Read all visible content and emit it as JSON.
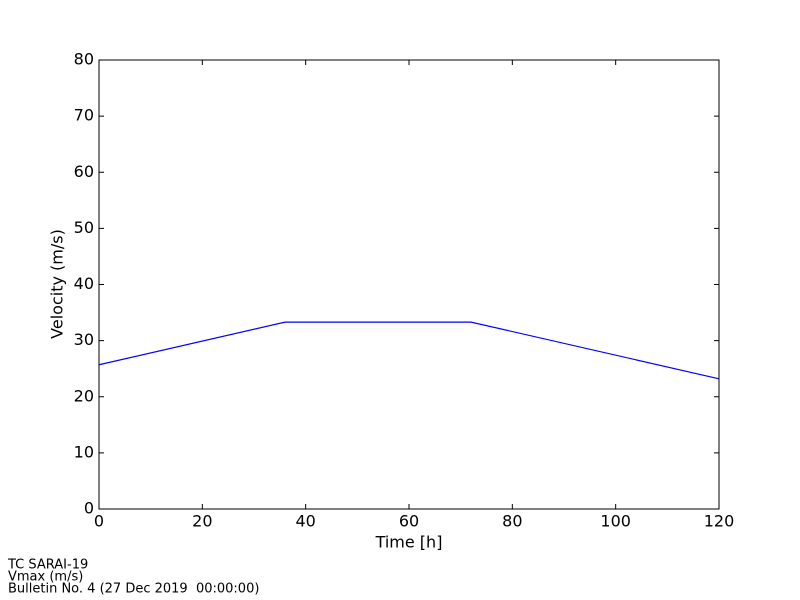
{
  "chart_data": {
    "type": "line",
    "xlabel": "Time [h]",
    "ylabel": "Velocity (m/s)",
    "x": [
      0,
      36,
      72,
      120
    ],
    "series": [
      {
        "color": "#0000ff",
        "values": [
          25.7,
          33.3,
          33.3,
          23.2
        ]
      }
    ],
    "xlim": [
      0,
      120
    ],
    "xticks": [
      0,
      20,
      40,
      60,
      80,
      100,
      120
    ],
    "ylim": [
      0,
      80
    ],
    "yticks": [
      0,
      10,
      20,
      30,
      40,
      50,
      60,
      70,
      80
    ],
    "grid": false,
    "annotations": [
      "TC SARAI-19",
      "Vmax (m/s)",
      "Bulletin No. 4 (27 Dec 2019  00:00:00)"
    ]
  }
}
